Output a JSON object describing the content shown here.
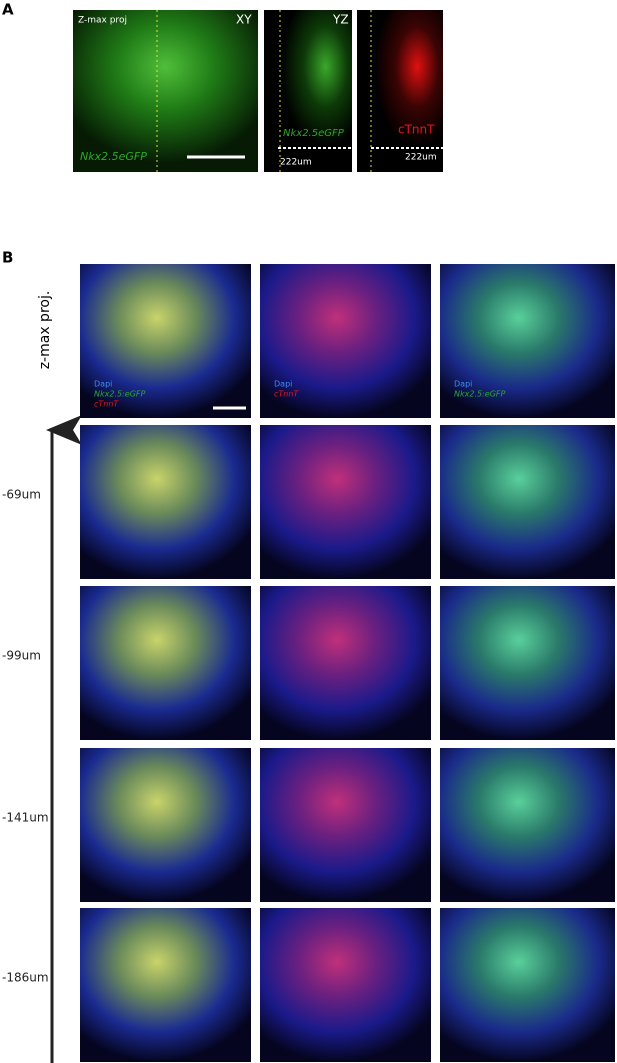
{
  "panel_a": {
    "label": "A",
    "xy": {
      "header": "Z-max proj",
      "view": "XY",
      "channel": "Nkx2.5eGFP"
    },
    "yz_green": {
      "view": "YZ",
      "channel": "Nkx2.5eGFP",
      "scale": "222um"
    },
    "yz_red": {
      "channel": "cTnnT",
      "scale": "222um"
    }
  },
  "panel_b": {
    "label": "B",
    "axis_label": "z-max proj.",
    "depths": [
      "-69um",
      "-99um",
      "-141um",
      "-186um"
    ],
    "legends": [
      [
        "Dapi",
        "Nkx2.5:eGFP",
        "cTnnT"
      ],
      [
        "Dapi",
        "cTnnT"
      ],
      [
        "Dapi",
        "Nkx2.5:eGFP"
      ]
    ]
  }
}
